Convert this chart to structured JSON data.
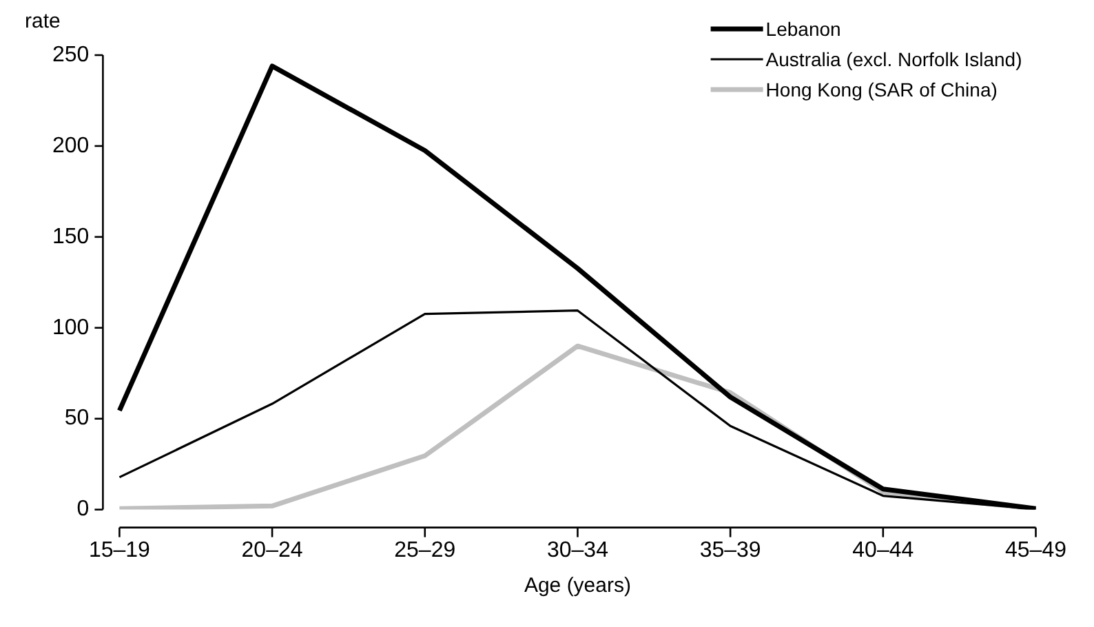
{
  "chart_data": {
    "type": "line",
    "xlabel": "Age (years)",
    "ylabel": "rate",
    "categories": [
      "15–19",
      "20–24",
      "25–29",
      "30–34",
      "35–39",
      "40–44",
      "45–49"
    ],
    "series": [
      {
        "name": "Lebanon",
        "color": "#000000",
        "values": [
          54.5,
          244,
          197.5,
          132.7,
          61.9,
          11.3,
          0.5
        ]
      },
      {
        "name": "Australia (excl. Norfolk Island)",
        "color": "#000000",
        "values": [
          17.8,
          58.2,
          107.6,
          109.5,
          46,
          7.6,
          0.3
        ]
      },
      {
        "name": "Hong Kong (SAR of China)",
        "color": "#bfbfbf",
        "values": [
          0.5,
          2,
          29.6,
          90,
          64.3,
          9.8,
          0.3
        ]
      }
    ],
    "ylim": [
      0,
      250
    ],
    "yticks": [
      0,
      50,
      100,
      150,
      200,
      250
    ],
    "grid": false,
    "legend": "top right",
    "marker": "none",
    "line_style": "solid"
  }
}
